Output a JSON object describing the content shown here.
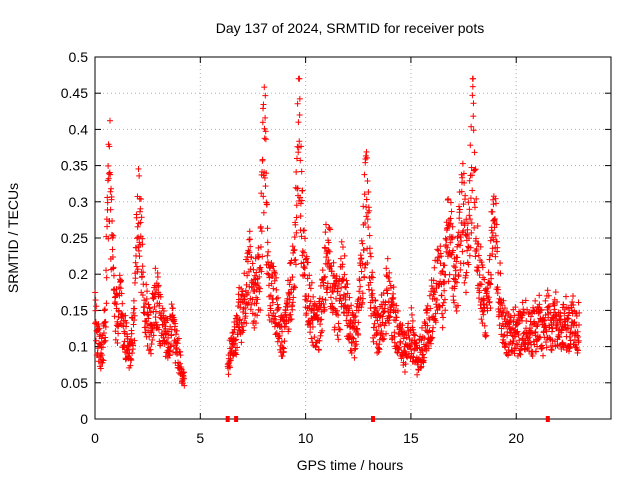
{
  "chart_data": {
    "type": "scatter",
    "title": "Day 137 of 2024, SRMTID for receiver pots",
    "xlabel": "GPS time / hours",
    "ylabel": "SRMTID / TECUs",
    "xlim": [
      0,
      24.5
    ],
    "ylim": [
      0,
      0.5
    ],
    "x_ticks": [
      0,
      5,
      10,
      15,
      20
    ],
    "y_ticks": [
      0,
      0.05,
      0.1,
      0.15,
      0.2,
      0.25,
      0.3,
      0.35,
      0.4,
      0.45,
      0.5
    ],
    "grid": true,
    "marker": "+",
    "color": "#ff0000",
    "series": [
      {
        "name": "SRMTID",
        "segments": [
          {
            "x_start": 0.0,
            "x_end": 4.25,
            "values": [
              0.14,
              0.12,
              0.1,
              0.09,
              0.11,
              0.13,
              0.31,
              0.35,
              0.27,
              0.18,
              0.15,
              0.13,
              0.16,
              0.14,
              0.12,
              0.11,
              0.1,
              0.09,
              0.12,
              0.14,
              0.23,
              0.28,
              0.25,
              0.19,
              0.16,
              0.14,
              0.13,
              0.12,
              0.15,
              0.17,
              0.16,
              0.14,
              0.13,
              0.12,
              0.12,
              0.11,
              0.12,
              0.13,
              0.11,
              0.1,
              0.09,
              0.08,
              0.06,
              0.05
            ]
          },
          {
            "x_start": 6.3,
            "x_end": 12.9,
            "values": [
              0.08,
              0.09,
              0.1,
              0.11,
              0.12,
              0.13,
              0.15,
              0.14,
              0.16,
              0.18,
              0.2,
              0.22,
              0.17,
              0.16,
              0.18,
              0.19,
              0.21,
              0.3,
              0.43,
              0.25,
              0.19,
              0.17,
              0.18,
              0.16,
              0.15,
              0.13,
              0.12,
              0.11,
              0.12,
              0.14,
              0.16,
              0.18,
              0.2,
              0.24,
              0.33,
              0.4,
              0.29,
              0.22,
              0.19,
              0.18,
              0.17,
              0.15,
              0.14,
              0.13,
              0.12,
              0.14,
              0.16,
              0.18,
              0.21,
              0.26,
              0.22,
              0.19,
              0.17,
              0.16,
              0.15,
              0.17,
              0.2,
              0.19,
              0.16,
              0.14,
              0.13,
              0.12,
              0.11,
              0.13,
              0.15,
              0.18,
              0.22,
              0.27,
              0.32
            ]
          },
          {
            "x_start": 12.9,
            "x_end": 23.0,
            "values": [
              0.32,
              0.24,
              0.18,
              0.15,
              0.13,
              0.12,
              0.13,
              0.15,
              0.14,
              0.16,
              0.18,
              0.17,
              0.15,
              0.14,
              0.13,
              0.12,
              0.11,
              0.1,
              0.09,
              0.1,
              0.11,
              0.12,
              0.1,
              0.09,
              0.08,
              0.09,
              0.1,
              0.11,
              0.12,
              0.13,
              0.14,
              0.16,
              0.17,
              0.19,
              0.21,
              0.18,
              0.17,
              0.2,
              0.24,
              0.26,
              0.22,
              0.19,
              0.18,
              0.21,
              0.27,
              0.3,
              0.25,
              0.22,
              0.24,
              0.33,
              0.42,
              0.31,
              0.24,
              0.2,
              0.18,
              0.16,
              0.15,
              0.17,
              0.2,
              0.24,
              0.27,
              0.23,
              0.19,
              0.16,
              0.14,
              0.13,
              0.12,
              0.11,
              0.12,
              0.13,
              0.12,
              0.11,
              0.12,
              0.13,
              0.12,
              0.13,
              0.12,
              0.11,
              0.12,
              0.13,
              0.12,
              0.14,
              0.13,
              0.12,
              0.13,
              0.14,
              0.13,
              0.12,
              0.13,
              0.14,
              0.13,
              0.12,
              0.13,
              0.14,
              0.13,
              0.12,
              0.13,
              0.14,
              0.13,
              0.12,
              0.13
            ]
          }
        ],
        "zero_markers": [
          6.3,
          6.7,
          13.2,
          21.5
        ]
      }
    ]
  }
}
